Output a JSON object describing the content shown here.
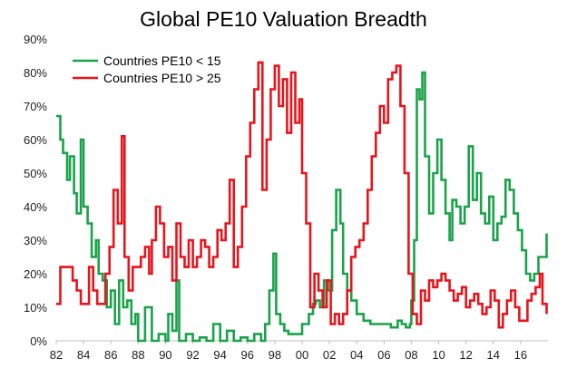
{
  "chart_data": {
    "type": "line",
    "title": "Global PE10 Valuation Breadth",
    "xlabel": "",
    "ylabel": "",
    "x_range": [
      1982,
      2018
    ],
    "ylim": [
      0,
      90
    ],
    "grid": false,
    "legend_position": "top-left",
    "x_tick_labels": [
      "82",
      "84",
      "86",
      "88",
      "90",
      "92",
      "94",
      "96",
      "98",
      "00",
      "02",
      "04",
      "06",
      "08",
      "10",
      "12",
      "14",
      "16"
    ],
    "x_tick_values": [
      1982,
      1984,
      1986,
      1988,
      1990,
      1992,
      1994,
      1996,
      1998,
      2000,
      2002,
      2004,
      2006,
      2008,
      2010,
      2012,
      2014,
      2016
    ],
    "y_tick_labels": [
      "0%",
      "10%",
      "20%",
      "30%",
      "40%",
      "50%",
      "60%",
      "70%",
      "80%",
      "90%"
    ],
    "y_tick_values": [
      0,
      10,
      20,
      30,
      40,
      50,
      60,
      70,
      80,
      90
    ],
    "series": [
      {
        "name": "Countries PE10 < 15",
        "color": "#1aa34a",
        "x": [
          1982.0,
          1982.3,
          1982.5,
          1982.8,
          1983.0,
          1983.3,
          1983.5,
          1983.8,
          1984.0,
          1984.3,
          1984.6,
          1984.9,
          1985.1,
          1985.4,
          1985.7,
          1986.0,
          1986.3,
          1986.6,
          1986.9,
          1987.2,
          1987.5,
          1987.8,
          1988.0,
          1988.5,
          1989.0,
          1989.5,
          1990.0,
          1990.2,
          1990.5,
          1990.8,
          1991.0,
          1991.5,
          1992.0,
          1992.5,
          1993.0,
          1993.5,
          1994.0,
          1994.5,
          1995.0,
          1995.5,
          1996.0,
          1996.5,
          1997.0,
          1997.3,
          1997.6,
          1997.9,
          1998.1,
          1998.4,
          1998.7,
          1999.0,
          1999.5,
          2000.0,
          2000.5,
          2000.8,
          2001.0,
          2001.3,
          2001.6,
          2001.9,
          2002.2,
          2002.5,
          2002.8,
          2003.0,
          2003.3,
          2003.6,
          2004.0,
          2004.5,
          2005.0,
          2005.5,
          2006.0,
          2006.5,
          2007.0,
          2007.3,
          2007.6,
          2007.9,
          2008.0,
          2008.2,
          2008.4,
          2008.6,
          2008.8,
          2009.0,
          2009.3,
          2009.6,
          2009.9,
          2010.2,
          2010.5,
          2010.8,
          2011.0,
          2011.3,
          2011.6,
          2011.9,
          2012.2,
          2012.5,
          2012.8,
          2013.1,
          2013.4,
          2013.7,
          2014.0,
          2014.3,
          2014.6,
          2014.9,
          2015.2,
          2015.5,
          2015.8,
          2016.1,
          2016.4,
          2016.7,
          2017.0,
          2017.3,
          2017.6,
          2017.9
        ],
        "values": [
          67,
          60,
          56,
          48,
          55,
          44,
          38,
          60,
          40,
          35,
          25,
          30,
          20,
          18,
          10,
          15,
          5,
          18,
          10,
          12,
          5,
          8,
          0,
          10,
          0,
          2,
          0,
          8,
          3,
          18,
          0,
          2,
          0,
          1,
          0,
          5,
          0,
          3,
          0,
          1,
          0,
          2,
          0,
          5,
          15,
          26,
          8,
          5,
          3,
          2,
          2,
          5,
          8,
          11,
          12,
          10,
          18,
          15,
          33,
          45,
          35,
          20,
          15,
          12,
          8,
          6,
          5,
          5,
          5,
          4,
          6,
          5,
          4,
          5,
          12,
          30,
          75,
          72,
          80,
          55,
          38,
          50,
          60,
          48,
          38,
          30,
          42,
          40,
          35,
          40,
          58,
          42,
          50,
          38,
          35,
          43,
          30,
          35,
          37,
          48,
          45,
          38,
          33,
          27,
          20,
          18,
          20,
          25,
          25,
          32
        ]
      },
      {
        "name": "Countries PE10 > 25",
        "color": "#e8141c",
        "x": [
          1982.0,
          1982.3,
          1982.6,
          1982.9,
          1983.2,
          1983.5,
          1983.8,
          1984.1,
          1984.4,
          1984.7,
          1985.0,
          1985.3,
          1985.6,
          1985.9,
          1986.2,
          1986.5,
          1986.8,
          1987.0,
          1987.3,
          1987.6,
          1987.9,
          1988.2,
          1988.5,
          1988.8,
          1989.0,
          1989.3,
          1989.6,
          1989.9,
          1990.2,
          1990.5,
          1990.8,
          1991.1,
          1991.4,
          1991.7,
          1992.0,
          1992.3,
          1992.6,
          1992.9,
          1993.2,
          1993.5,
          1993.8,
          1994.1,
          1994.4,
          1994.7,
          1995.0,
          1995.3,
          1995.6,
          1995.9,
          1996.2,
          1996.5,
          1996.8,
          1997.1,
          1997.4,
          1997.7,
          1998.0,
          1998.3,
          1998.6,
          1998.9,
          1999.2,
          1999.5,
          1999.8,
          2000.0,
          2000.3,
          2000.6,
          2000.9,
          2001.2,
          2001.5,
          2001.8,
          2002.1,
          2002.4,
          2002.7,
          2003.0,
          2003.3,
          2003.6,
          2003.9,
          2004.2,
          2004.5,
          2004.8,
          2005.1,
          2005.4,
          2005.7,
          2006.0,
          2006.3,
          2006.6,
          2006.9,
          2007.2,
          2007.5,
          2007.8,
          2008.1,
          2008.4,
          2008.7,
          2009.0,
          2009.3,
          2009.6,
          2009.9,
          2010.2,
          2010.5,
          2010.8,
          2011.1,
          2011.4,
          2011.7,
          2012.0,
          2012.3,
          2012.6,
          2012.9,
          2013.2,
          2013.5,
          2013.8,
          2014.1,
          2014.4,
          2014.7,
          2015.0,
          2015.3,
          2015.6,
          2015.9,
          2016.2,
          2016.5,
          2016.8,
          2017.1,
          2017.4,
          2017.6,
          2017.9
        ],
        "values": [
          11,
          22,
          22,
          22,
          18,
          15,
          11,
          11,
          22,
          15,
          11,
          11,
          20,
          28,
          45,
          35,
          61,
          25,
          15,
          22,
          22,
          25,
          28,
          20,
          30,
          40,
          35,
          25,
          28,
          18,
          35,
          25,
          22,
          30,
          22,
          25,
          30,
          28,
          22,
          25,
          33,
          30,
          35,
          48,
          22,
          28,
          40,
          55,
          65,
          75,
          83,
          45,
          60,
          75,
          82,
          70,
          78,
          62,
          80,
          65,
          72,
          50,
          35,
          10,
          20,
          15,
          10,
          18,
          5,
          8,
          5,
          8,
          15,
          25,
          28,
          30,
          35,
          45,
          55,
          62,
          70,
          65,
          78,
          80,
          82,
          70,
          50,
          20,
          8,
          5,
          15,
          12,
          18,
          16,
          18,
          20,
          18,
          15,
          12,
          14,
          16,
          10,
          12,
          14,
          11,
          8,
          10,
          15,
          12,
          4,
          8,
          12,
          15,
          10,
          6,
          6,
          12,
          14,
          16,
          20,
          11,
          8
        ]
      }
    ]
  }
}
